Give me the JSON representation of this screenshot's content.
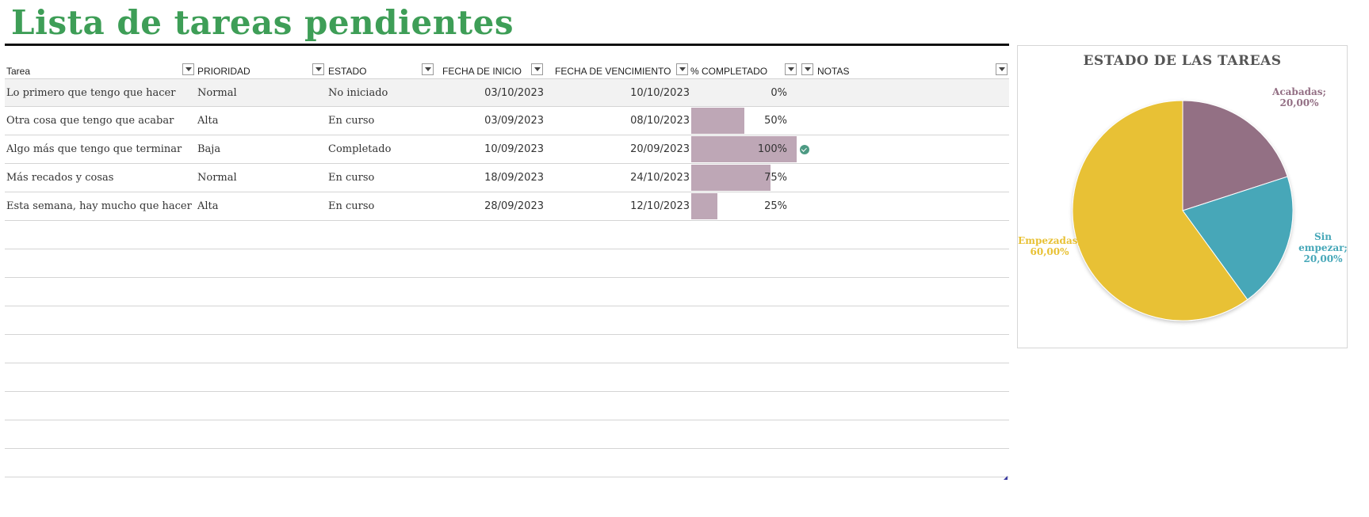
{
  "title": "Lista de tareas pendientes",
  "columns": [
    {
      "label": "Tarea"
    },
    {
      "label": "PRIORIDAD"
    },
    {
      "label": "ESTADO"
    },
    {
      "label": "FECHA DE INICIO"
    },
    {
      "label": "FECHA DE VENCIMIENTO"
    },
    {
      "label": "% COMPLETADO"
    },
    {
      "label": "NOTAS"
    }
  ],
  "tasks": [
    {
      "name": "Lo primero que tengo que hacer",
      "priority": "Normal",
      "status": "No iniciado",
      "start": "03/10/2023",
      "due": "10/10/2023",
      "percent": 0,
      "percent_label": "0%",
      "done": false
    },
    {
      "name": "Otra cosa que tengo que acabar",
      "priority": "Alta",
      "status": "En curso",
      "start": "03/09/2023",
      "due": "08/10/2023",
      "percent": 50,
      "percent_label": "50%",
      "done": false
    },
    {
      "name": "Algo más que tengo que terminar",
      "priority": "Baja",
      "status": "Completado",
      "start": "10/09/2023",
      "due": "20/09/2023",
      "percent": 100,
      "percent_label": "100%",
      "done": true
    },
    {
      "name": "Más recados y cosas",
      "priority": "Normal",
      "status": "En curso",
      "start": "18/09/2023",
      "due": "24/10/2023",
      "percent": 75,
      "percent_label": "75%",
      "done": false
    },
    {
      "name": "Esta semana, hay mucho que hacer",
      "priority": "Alta",
      "status": "En curso",
      "start": "28/09/2023",
      "due": "12/10/2023",
      "percent": 25,
      "percent_label": "25%",
      "done": false
    }
  ],
  "icons": {
    "filter": "dropdown-arrow-icon",
    "done": "check-circle-icon"
  },
  "colors": {
    "title": "#3e9e57",
    "bar": "#bea7b6",
    "check": "#4d9a83"
  },
  "chart_data": {
    "type": "pie",
    "title": "ESTADO DE LAS TAREAS",
    "slices": [
      {
        "label": "Acabadas;",
        "value_label": "20,00%",
        "value": 20,
        "color": "#936f84"
      },
      {
        "label": "Sin empezar;",
        "value_label": "20,00%",
        "value": 20,
        "color": "#46a7b8"
      },
      {
        "label": "Empezadas;",
        "value_label": "60,00%",
        "value": 60,
        "color": "#e8c134"
      }
    ]
  }
}
